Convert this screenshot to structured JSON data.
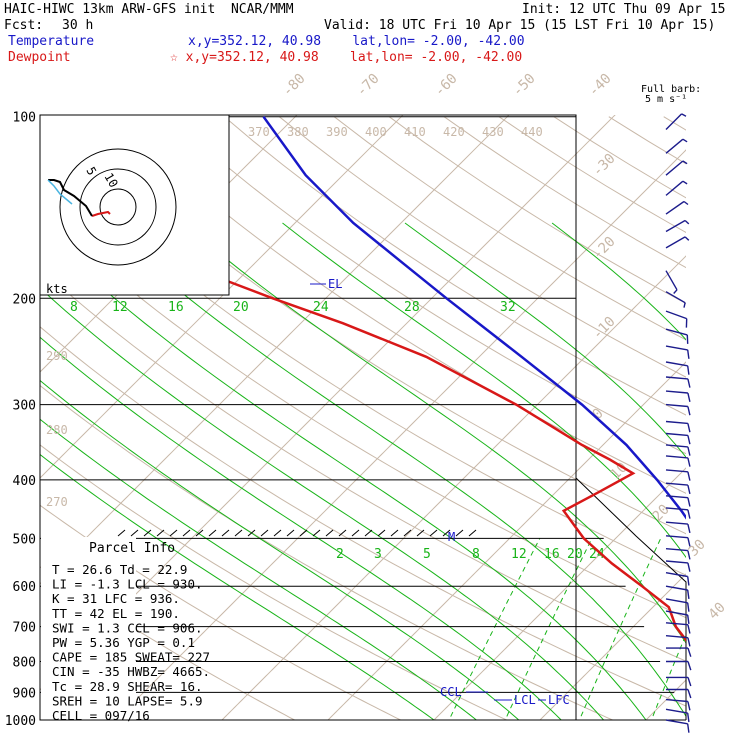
{
  "header": {
    "title": "HAIC-HIWC 13km ARW-GFS init  NCAR/MMM",
    "init": "Init: 12 UTC Thu 09 Apr 15",
    "fcst_label": "Fcst:",
    "fcst_value": "30 h",
    "valid": "Valid: 18 UTC Fri 10 Apr 15 (15 LST Fri 10 Apr 15)",
    "temp_label": "Temperature",
    "temp_info": "x,y=352.12, 40.98    lat,lon= -2.00, -42.00",
    "dew_label": "Dewpoint",
    "dew_info": "☆ x,y=352.12, 40.98    lat,lon= -2.00, -42.00",
    "barb_label": "Full barb:",
    "barb_unit": "5 m s⁻¹"
  },
  "colors": {
    "temperature": "#1818c8",
    "dewpoint": "#d81818",
    "isotherm": "#c8b8a8",
    "mixing_ratio": "#18b418",
    "moist_adiabat": "#18b418"
  },
  "chart_data": {
    "type": "line",
    "title": "",
    "y_axis": "pressure (hPa), log scale",
    "pressure_labels": [
      "100",
      "200",
      "300",
      "400",
      "500",
      "600",
      "700",
      "800",
      "900",
      "1000"
    ],
    "isotherm_labels": [
      "-80",
      "-70",
      "-60",
      "-50",
      "-40",
      "-30",
      "-20",
      "-10",
      "0",
      "10",
      "20",
      "30",
      "40"
    ],
    "theta_labels": [
      "370",
      "380",
      "390",
      "400",
      "410",
      "420",
      "430",
      "440"
    ],
    "theta_left_labels": [
      "290",
      "280",
      "270"
    ],
    "mixing_ratio_labels_upper": [
      "8",
      "12",
      "16",
      "20",
      "24",
      "28",
      "32"
    ],
    "mixing_ratio_labels_lower": [
      "2",
      "3",
      "5",
      "8",
      "12",
      "16",
      "20",
      "24"
    ],
    "el_label": "EL",
    "m_label": "M",
    "ccl_label": "CCL",
    "lcl_label": "LCL",
    "lfc_label": "LFC",
    "temperature_profile": [
      {
        "p": 1000,
        "t": 26.6
      },
      {
        "p": 975,
        "t": 24.8
      },
      {
        "p": 950,
        "t": 22.9
      },
      {
        "p": 925,
        "t": 21.0
      },
      {
        "p": 900,
        "t": 19.7
      },
      {
        "p": 875,
        "t": 18.5
      },
      {
        "p": 850,
        "t": 17.4
      },
      {
        "p": 800,
        "t": 15.3
      },
      {
        "p": 750,
        "t": 13.1
      },
      {
        "p": 700,
        "t": 10.6
      },
      {
        "p": 650,
        "t": 7.8
      },
      {
        "p": 600,
        "t": 4.8
      },
      {
        "p": 550,
        "t": 1.6
      },
      {
        "p": 500,
        "t": -2.0
      },
      {
        "p": 450,
        "t": -6.4
      },
      {
        "p": 400,
        "t": -11.6
      },
      {
        "p": 350,
        "t": -17.8
      },
      {
        "p": 300,
        "t": -25.8
      },
      {
        "p": 250,
        "t": -36.0
      },
      {
        "p": 200,
        "t": -48.6
      },
      {
        "p": 175,
        "t": -56.0
      },
      {
        "p": 150,
        "t": -64.5
      },
      {
        "p": 125,
        "t": -73.5
      },
      {
        "p": 100,
        "t": -83.0
      }
    ],
    "dewpoint_profile": [
      {
        "p": 1000,
        "t": 22.9
      },
      {
        "p": 975,
        "t": 21.5
      },
      {
        "p": 950,
        "t": 20.8
      },
      {
        "p": 925,
        "t": 19.5
      },
      {
        "p": 900,
        "t": 16.5
      },
      {
        "p": 875,
        "t": 15.5
      },
      {
        "p": 850,
        "t": 14.0
      },
      {
        "p": 800,
        "t": 10.0
      },
      {
        "p": 750,
        "t": 7.0
      },
      {
        "p": 700,
        "t": 4.0
      },
      {
        "p": 650,
        "t": 1.5
      },
      {
        "p": 600,
        "t": -3.0
      },
      {
        "p": 550,
        "t": -8.0
      },
      {
        "p": 500,
        "t": -13.0
      },
      {
        "p": 450,
        "t": -17.5
      },
      {
        "p": 420,
        "t": -16.0
      },
      {
        "p": 390,
        "t": -14.5
      },
      {
        "p": 370,
        "t": -18.0
      },
      {
        "p": 350,
        "t": -22.0
      },
      {
        "p": 300,
        "t": -32.0
      },
      {
        "p": 250,
        "t": -45.0
      },
      {
        "p": 220,
        "t": -56.0
      },
      {
        "p": 200,
        "t": -65.0
      },
      {
        "p": 175,
        "t": -77.0
      },
      {
        "p": 150,
        "t": -87.0
      },
      {
        "p": 125,
        "t": -92.0
      },
      {
        "p": 100,
        "t": -96.0
      }
    ],
    "wind_barbs": [
      {
        "p": 1000,
        "spd": 10,
        "dir": 100
      },
      {
        "p": 960,
        "spd": 10,
        "dir": 100
      },
      {
        "p": 925,
        "spd": 10,
        "dir": 95
      },
      {
        "p": 890,
        "spd": 10,
        "dir": 90
      },
      {
        "p": 850,
        "spd": 10,
        "dir": 90
      },
      {
        "p": 800,
        "spd": 10,
        "dir": 90
      },
      {
        "p": 760,
        "spd": 10,
        "dir": 90
      },
      {
        "p": 725,
        "spd": 10,
        "dir": 95
      },
      {
        "p": 690,
        "spd": 10,
        "dir": 95
      },
      {
        "p": 660,
        "spd": 10,
        "dir": 100
      },
      {
        "p": 630,
        "spd": 10,
        "dir": 100
      },
      {
        "p": 600,
        "spd": 10,
        "dir": 100
      },
      {
        "p": 570,
        "spd": 10,
        "dir": 100
      },
      {
        "p": 545,
        "spd": 10,
        "dir": 95
      },
      {
        "p": 520,
        "spd": 10,
        "dir": 95
      },
      {
        "p": 495,
        "spd": 10,
        "dir": 95
      },
      {
        "p": 470,
        "spd": 10,
        "dir": 95
      },
      {
        "p": 445,
        "spd": 10,
        "dir": 95
      },
      {
        "p": 425,
        "spd": 10,
        "dir": 95
      },
      {
        "p": 405,
        "spd": 10,
        "dir": 95
      },
      {
        "p": 385,
        "spd": 10,
        "dir": 95
      },
      {
        "p": 365,
        "spd": 10,
        "dir": 95
      },
      {
        "p": 350,
        "spd": 10,
        "dir": 95
      },
      {
        "p": 335,
        "spd": 10,
        "dir": 95
      },
      {
        "p": 320,
        "spd": 10,
        "dir": 95
      },
      {
        "p": 300,
        "spd": 10,
        "dir": 95
      },
      {
        "p": 285,
        "spd": 10,
        "dir": 95
      },
      {
        "p": 270,
        "spd": 10,
        "dir": 95
      },
      {
        "p": 255,
        "spd": 10,
        "dir": 100
      },
      {
        "p": 240,
        "spd": 10,
        "dir": 100
      },
      {
        "p": 225,
        "spd": 10,
        "dir": 105
      },
      {
        "p": 210,
        "spd": 10,
        "dir": 110
      },
      {
        "p": 195,
        "spd": 5,
        "dir": 120
      },
      {
        "p": 180,
        "spd": 5,
        "dir": 150
      },
      {
        "p": 165,
        "spd": 5,
        "dir": 60
      },
      {
        "p": 155,
        "spd": 5,
        "dir": 60
      },
      {
        "p": 145,
        "spd": 5,
        "dir": 55
      },
      {
        "p": 135,
        "spd": 5,
        "dir": 50
      },
      {
        "p": 125,
        "spd": 5,
        "dir": 50
      },
      {
        "p": 115,
        "spd": 5,
        "dir": 50
      },
      {
        "p": 105,
        "spd": 5,
        "dir": 45
      }
    ],
    "hodograph": {
      "axis_label": "kts",
      "ring_labels": [
        "5",
        "10"
      ]
    }
  },
  "parcel_info": {
    "title": "Parcel Info",
    "rows": [
      "T  =    26.6 Td =  22.9",
      "LI =    -1.3 LCL =  930.",
      "K  =      31 LFC =  936.",
      "TT =      42 EL  =  190.",
      "SWI =    1.3 CCL =  906.",
      "PW =    5.36 YGP =   0.1",
      "CAPE =   185 SWEAT=  227",
      "CIN =    -35 HWBZ= 4665.",
      "Tc =    28.9 SHEAR=  16.",
      "SREH =    10 LAPSE=  5.9",
      "CELL = 097/16"
    ]
  }
}
